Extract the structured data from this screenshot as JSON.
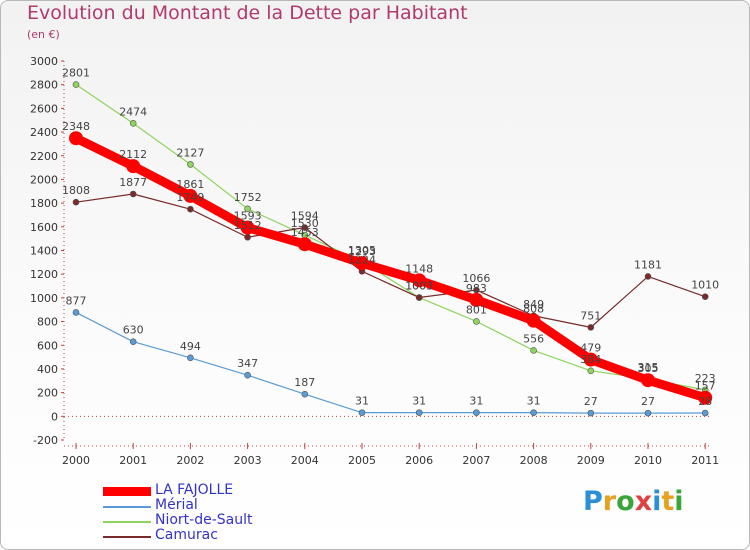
{
  "title": "Evolution du Montant de la Dette par Habitant",
  "subtitle": "(en €)",
  "logo": {
    "text": "Proxiti",
    "colors": [
      "#2a8fd6",
      "#e8a020",
      "#3aa63a",
      "#e04040",
      "#2a8fd6",
      "#e8a020",
      "#3aa63a"
    ]
  },
  "chart_data": {
    "type": "line",
    "x": [
      "2000",
      "2001",
      "2002",
      "2003",
      "2004",
      "2005",
      "2006",
      "2007",
      "2008",
      "2009",
      "2010",
      "2011"
    ],
    "ylim": [
      -200,
      3000
    ],
    "yticks": [
      "-200",
      "0",
      "200",
      "400",
      "600",
      "800",
      "1000",
      "1200",
      "1400",
      "1600",
      "1800",
      "2000",
      "2200",
      "2400",
      "2600",
      "2800",
      "3000"
    ],
    "grid": false,
    "legend": "bottom-left",
    "series": [
      {
        "name": "Mérial",
        "color": "#5a9bd5",
        "values": [
          877,
          630,
          494,
          347,
          187,
          31,
          31,
          31,
          31,
          27,
          27,
          28
        ],
        "labels": [
          "877",
          "630",
          "494",
          "347",
          "187",
          "31",
          "31",
          "31",
          "31",
          "27",
          "27",
          "28"
        ]
      },
      {
        "name": "Niort-de-Sault",
        "color": "#8ed45e",
        "values": [
          2801,
          2474,
          2127,
          1752,
          1530,
          1305,
          1003,
          801,
          556,
          384,
          315,
          223
        ],
        "labels": [
          "2801",
          "2474",
          "2127",
          "1752",
          "1530",
          "1305",
          "1003",
          "801",
          "556",
          "384",
          "315",
          "223"
        ]
      },
      {
        "name": "Camurac",
        "color": "#7a2a2a",
        "values": [
          1808,
          1877,
          1749,
          1512,
          1594,
          1224,
          1003,
          1066,
          849,
          751,
          1181,
          1010
        ],
        "labels": [
          "1808",
          "1877",
          "1749",
          "1512",
          "1594",
          "1224",
          "1003",
          "1066",
          "849",
          "751",
          "1181",
          "1010"
        ]
      },
      {
        "name": "LA FAJOLLE",
        "color": "#ff0000",
        "values": [
          2348,
          2112,
          1861,
          1593,
          1453,
          1293,
          1148,
          983,
          808,
          479,
          305,
          157
        ],
        "labels": [
          "2348",
          "2112",
          "1861",
          "1593",
          "1453",
          "1293",
          "1148",
          "983",
          "808",
          "479",
          "305",
          "157"
        ]
      }
    ]
  }
}
